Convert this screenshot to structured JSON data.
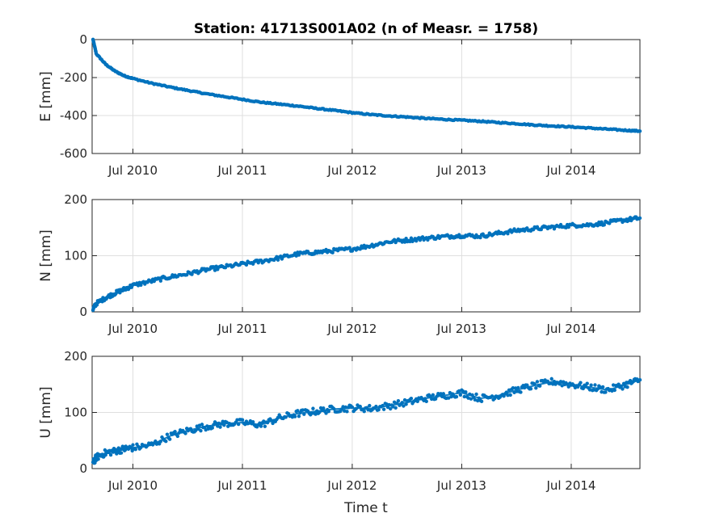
{
  "figure": {
    "title": "Station: 41713S001A02 (n of Measr. = 1758)",
    "xlabel": "Time t"
  },
  "chart_data": [
    {
      "type": "scatter",
      "component": "E",
      "ylabel": "E [mm]",
      "ylim": [
        -600,
        0
      ],
      "yticks": [
        0,
        -200,
        -400,
        -600
      ],
      "xlim": [
        "2010-02-15",
        "2015-02-15"
      ],
      "xticks": [
        "2010-07-01",
        "2011-07-01",
        "2012-07-01",
        "2013-07-01",
        "2014-07-01"
      ],
      "xticklabels": [
        "Jul 2010",
        "Jul 2011",
        "Jul 2012",
        "Jul 2013",
        "Jul 2014"
      ],
      "grid": true,
      "color": "#0072BD",
      "series": [
        {
          "x": [
            "2010-02-18",
            "2010-03-01",
            "2010-04-01",
            "2010-05-01",
            "2010-06-01",
            "2010-07-01",
            "2010-09-01",
            "2010-11-01",
            "2011-01-01",
            "2011-03-01",
            "2011-05-01",
            "2011-07-01",
            "2011-09-01",
            "2011-11-01",
            "2012-01-01",
            "2012-03-01",
            "2012-05-01",
            "2012-07-01",
            "2012-09-01",
            "2012-11-01",
            "2013-01-01",
            "2013-03-01",
            "2013-05-01",
            "2013-07-01",
            "2013-09-01",
            "2013-11-01",
            "2014-01-01",
            "2014-03-01",
            "2014-05-01",
            "2014-07-01",
            "2014-09-01",
            "2014-11-01",
            "2015-01-01",
            "2015-02-15"
          ],
          "y": [
            0,
            -75,
            -130,
            -165,
            -190,
            -205,
            -230,
            -250,
            -268,
            -285,
            -300,
            -315,
            -330,
            -340,
            -350,
            -362,
            -373,
            -385,
            -395,
            -402,
            -408,
            -415,
            -420,
            -425,
            -430,
            -437,
            -443,
            -450,
            -455,
            -460,
            -466,
            -472,
            -478,
            -482
          ]
        }
      ]
    },
    {
      "type": "scatter",
      "component": "N",
      "ylabel": "N [mm]",
      "ylim": [
        0,
        200
      ],
      "yticks": [
        0,
        100,
        200
      ],
      "xlim": [
        "2010-02-15",
        "2015-02-15"
      ],
      "xticks": [
        "2010-07-01",
        "2011-07-01",
        "2012-07-01",
        "2013-07-01",
        "2014-07-01"
      ],
      "xticklabels": [
        "Jul 2010",
        "Jul 2011",
        "Jul 2012",
        "Jul 2013",
        "Jul 2014"
      ],
      "grid": true,
      "color": "#0072BD",
      "series": [
        {
          "x": [
            "2010-02-18",
            "2010-03-01",
            "2010-04-01",
            "2010-05-01",
            "2010-06-01",
            "2010-07-01",
            "2010-09-01",
            "2010-11-01",
            "2011-01-01",
            "2011-03-01",
            "2011-05-01",
            "2011-07-01",
            "2011-09-01",
            "2011-11-01",
            "2012-01-01",
            "2012-03-01",
            "2012-05-01",
            "2012-07-01",
            "2012-09-01",
            "2012-11-01",
            "2013-01-01",
            "2013-03-01",
            "2013-05-01",
            "2013-07-01",
            "2013-09-01",
            "2013-11-01",
            "2014-01-01",
            "2014-03-01",
            "2014-05-01",
            "2014-07-01",
            "2014-09-01",
            "2014-11-01",
            "2015-01-01",
            "2015-02-15"
          ],
          "y": [
            5,
            15,
            25,
            33,
            40,
            47,
            55,
            62,
            68,
            75,
            80,
            85,
            90,
            96,
            103,
            106,
            109,
            112,
            118,
            125,
            128,
            131,
            134,
            136,
            135,
            140,
            145,
            148,
            151,
            154,
            155,
            159,
            164,
            167
          ]
        }
      ]
    },
    {
      "type": "scatter",
      "component": "U",
      "ylabel": "U [mm]",
      "ylim": [
        0,
        200
      ],
      "yticks": [
        0,
        100,
        200
      ],
      "xlim": [
        "2010-02-15",
        "2015-02-15"
      ],
      "xticks": [
        "2010-07-01",
        "2011-07-01",
        "2012-07-01",
        "2013-07-01",
        "2014-07-01"
      ],
      "xticklabels": [
        "Jul 2010",
        "Jul 2011",
        "Jul 2012",
        "Jul 2013",
        "Jul 2014"
      ],
      "grid": true,
      "color": "#0072BD",
      "series": [
        {
          "x": [
            "2010-02-18",
            "2010-03-01",
            "2010-04-01",
            "2010-05-01",
            "2010-06-01",
            "2010-07-01",
            "2010-09-01",
            "2010-11-01",
            "2011-01-01",
            "2011-03-01",
            "2011-05-01",
            "2011-07-01",
            "2011-09-01",
            "2011-11-01",
            "2012-01-01",
            "2012-03-01",
            "2012-05-01",
            "2012-07-01",
            "2012-09-01",
            "2012-11-01",
            "2013-01-01",
            "2013-03-01",
            "2013-05-01",
            "2013-07-01",
            "2013-09-01",
            "2013-11-01",
            "2014-01-01",
            "2014-03-01",
            "2014-05-01",
            "2014-07-01",
            "2014-09-01",
            "2014-11-01",
            "2015-01-01",
            "2015-02-15"
          ],
          "y": [
            10,
            20,
            28,
            31,
            35,
            37,
            42,
            58,
            68,
            75,
            80,
            82,
            78,
            90,
            98,
            102,
            106,
            108,
            107,
            112,
            118,
            125,
            130,
            135,
            125,
            130,
            140,
            148,
            155,
            150,
            145,
            140,
            150,
            158
          ]
        }
      ]
    }
  ]
}
